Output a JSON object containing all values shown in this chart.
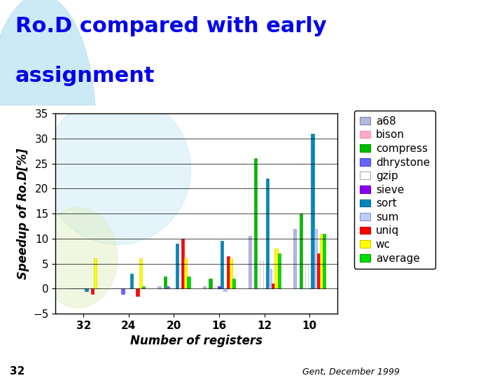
{
  "title_line1": "Ro.D compared with early",
  "title_line2": "assignment",
  "xlabel": "Number of registers",
  "ylabel": "Speedup of Ro.D[%]",
  "x_labels": [
    "32",
    "24",
    "20",
    "16",
    "12",
    "10"
  ],
  "series_names": [
    "a68",
    "bison",
    "compress",
    "dhrystone",
    "gzip",
    "sieve",
    "sort",
    "sum",
    "uniq",
    "wc",
    "average"
  ],
  "series_values": {
    "a68": [
      0.0,
      0.0,
      0.5,
      0.5,
      10.5,
      12.0
    ],
    "bison": [
      0.0,
      0.0,
      0.0,
      0.0,
      0.0,
      0.0
    ],
    "compress": [
      0.0,
      0.0,
      2.5,
      2.0,
      26.0,
      15.0
    ],
    "dhrystone": [
      0.0,
      -1.0,
      0.5,
      0.0,
      0.0,
      0.0
    ],
    "gzip": [
      0.0,
      0.0,
      0.0,
      0.5,
      5.5,
      5.0
    ],
    "sieve": [
      0.0,
      0.0,
      0.0,
      0.5,
      0.0,
      0.0
    ],
    "sort": [
      -0.5,
      3.0,
      9.0,
      9.5,
      22.0,
      31.0
    ],
    "sum": [
      0.0,
      0.0,
      0.0,
      -0.5,
      4.0,
      12.0
    ],
    "uniq": [
      -1.0,
      -1.5,
      10.0,
      6.5,
      1.0,
      7.0
    ],
    "wc": [
      6.0,
      6.0,
      6.0,
      6.0,
      8.0,
      11.0
    ],
    "average": [
      0.0,
      0.5,
      2.5,
      2.0,
      7.0,
      11.0
    ]
  },
  "colors": {
    "a68": "#b0b8e0",
    "bison": "#ffaacc",
    "compress": "#00bb00",
    "dhrystone": "#6666ff",
    "gzip": "#ffffff",
    "sieve": "#8800ee",
    "sort": "#0088bb",
    "sum": "#bbccff",
    "uniq": "#ff0000",
    "wc": "#ffff00",
    "average": "#00dd00"
  },
  "edge_colors": {
    "a68": "#8888aa",
    "bison": "#ff88bb",
    "compress": "#009900",
    "dhrystone": "#4444dd",
    "gzip": "#aaaaaa",
    "sieve": "#6600cc",
    "sort": "#006699",
    "sum": "#8899cc",
    "uniq": "#cc0000",
    "wc": "#cccc00",
    "average": "#009900"
  },
  "ylim": [
    -5,
    35
  ],
  "yticks": [
    -5,
    0,
    5,
    10,
    15,
    20,
    25,
    30,
    35
  ],
  "page_bg": "#ffffff",
  "title_area_bg": "#ffffff",
  "plot_bg": "#ffffff",
  "title_color": "#0000ee",
  "title_fontsize": 22,
  "axis_label_fontsize": 12,
  "tick_fontsize": 11,
  "legend_fontsize": 11,
  "page_num": "32",
  "footer_text": "Gent, December 1999"
}
